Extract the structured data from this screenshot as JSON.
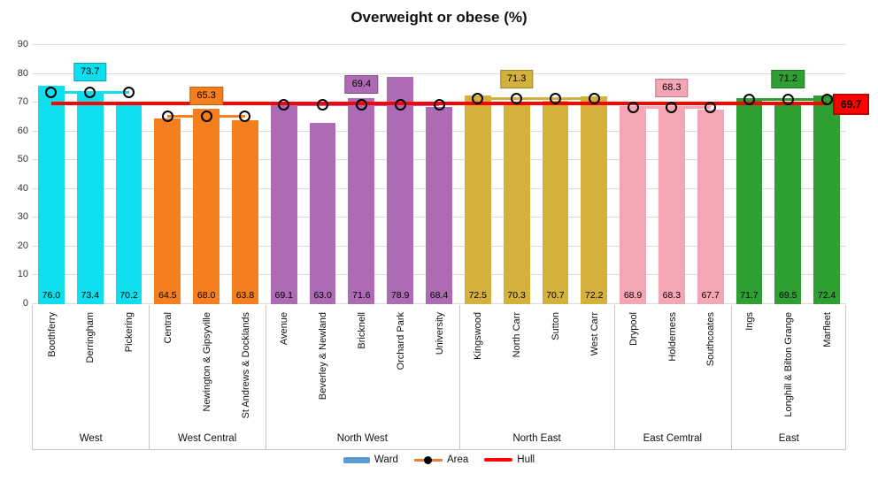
{
  "title": "Overweight or obese (%)",
  "yaxis": {
    "ticks": [
      0,
      10,
      20,
      30,
      40,
      50,
      60,
      70,
      80,
      90
    ]
  },
  "legend": {
    "items": [
      {
        "label": "Ward",
        "swatch": "bar",
        "color": "#5B9BD5"
      },
      {
        "label": "Area",
        "swatch": "line-dot",
        "color": "#ED7D31",
        "dot_color": "#000000"
      },
      {
        "label": "Hull",
        "swatch": "line",
        "color": "#FF0000"
      }
    ]
  },
  "chart_data": {
    "type": "bar",
    "title": "Overweight or obese (%)",
    "xlabel": "",
    "ylabel": "",
    "ylim": [
      0,
      90
    ],
    "ytick_step": 10,
    "grid": true,
    "legend_position": "bottom",
    "hull_line": {
      "name": "Hull",
      "value": 69.7,
      "label": "69.7",
      "color": "#FF0000",
      "border_color": "#C00000"
    },
    "groups": [
      {
        "name": "West",
        "color": "#0FDEEF",
        "area": {
          "value": 73.7,
          "label": "73.7"
        },
        "wards": [
          {
            "name": "Boothferry",
            "value": 76.0,
            "label": "76.0"
          },
          {
            "name": "Derringham",
            "value": 73.4,
            "label": "73.4"
          },
          {
            "name": "Pickering",
            "value": 70.2,
            "label": "70.2"
          }
        ]
      },
      {
        "name": "West Central",
        "color": "#F57E1F",
        "area": {
          "value": 65.3,
          "label": "65.3"
        },
        "wards": [
          {
            "name": "Central",
            "value": 64.5,
            "label": "64.5"
          },
          {
            "name": "Newington & Gipsyville",
            "value": 68.0,
            "label": "68.0"
          },
          {
            "name": "St Andrews & Docklands",
            "value": 63.8,
            "label": "63.8"
          }
        ]
      },
      {
        "name": "North West",
        "color": "#AC6BB3",
        "area": {
          "value": 69.4,
          "label": "69.4"
        },
        "wards": [
          {
            "name": "Avenue",
            "value": 69.1,
            "label": "69.1"
          },
          {
            "name": "Beverley & Newland",
            "value": 63.0,
            "label": "63.0"
          },
          {
            "name": "Bricknell",
            "value": 71.6,
            "label": "71.6"
          },
          {
            "name": "Orchard Park",
            "value": 78.9,
            "label": "78.9"
          },
          {
            "name": "University",
            "value": 68.4,
            "label": "68.4"
          }
        ]
      },
      {
        "name": "North East",
        "color": "#D3B13C",
        "area": {
          "value": 71.3,
          "label": "71.3"
        },
        "wards": [
          {
            "name": "Kingswood",
            "value": 72.5,
            "label": "72.5"
          },
          {
            "name": "North Carr",
            "value": 70.3,
            "label": "70.3"
          },
          {
            "name": "Sutton",
            "value": 70.7,
            "label": "70.7"
          },
          {
            "name": "West Carr",
            "value": 72.2,
            "label": "72.2"
          }
        ]
      },
      {
        "name": "East Cemtral",
        "color": "#F4A6B5",
        "area": {
          "value": 68.3,
          "label": "68.3"
        },
        "wards": [
          {
            "name": "Drypool",
            "value": 68.9,
            "label": "68.9"
          },
          {
            "name": "Holderness",
            "value": 68.3,
            "label": "68.3"
          },
          {
            "name": "Southcoates",
            "value": 67.7,
            "label": "67.7"
          }
        ]
      },
      {
        "name": "East",
        "color": "#2F9E33",
        "area": {
          "value": 71.2,
          "label": "71.2"
        },
        "wards": [
          {
            "name": "Ings",
            "value": 71.7,
            "label": "71.7"
          },
          {
            "name": "Longhill & Bilton Grange",
            "value": 69.5,
            "label": "69.5"
          },
          {
            "name": "Marfleet",
            "value": 72.4,
            "label": "72.4"
          }
        ]
      }
    ]
  }
}
